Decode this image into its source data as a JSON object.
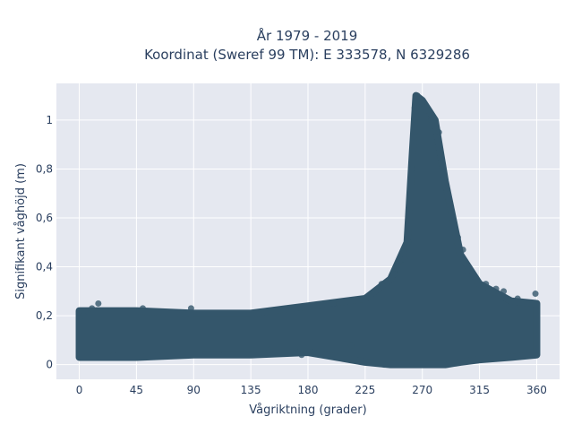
{
  "chart_data": {
    "type": "scatter",
    "title_lines": [
      "År 1979 - 2019",
      "Koordinat (Sweref 99 TM): E 333578, N 6329286"
    ],
    "xlabel": "Vågriktning (grader)",
    "ylabel": "Signifikant våghöjd (m)",
    "xlim": [
      -18,
      378
    ],
    "ylim": [
      -0.06,
      1.15
    ],
    "xticks": [
      {
        "value": 0,
        "label": "0"
      },
      {
        "value": 45,
        "label": "45"
      },
      {
        "value": 90,
        "label": "90"
      },
      {
        "value": 135,
        "label": "135"
      },
      {
        "value": 180,
        "label": "180"
      },
      {
        "value": 225,
        "label": "225"
      },
      {
        "value": 270,
        "label": "270"
      },
      {
        "value": 315,
        "label": "315"
      },
      {
        "value": 360,
        "label": "360"
      }
    ],
    "yticks": [
      {
        "value": 0,
        "label": "0"
      },
      {
        "value": 0.2,
        "label": "0,2"
      },
      {
        "value": 0.4,
        "label": "0,4"
      },
      {
        "value": 0.6,
        "label": "0,6"
      },
      {
        "value": 0.8,
        "label": "0,8"
      },
      {
        "value": 1.0,
        "label": "1"
      }
    ],
    "grid": true,
    "marker_color": "#34566b",
    "plot_bgcolor": "#e5e8f0",
    "envelope": [
      {
        "x": 0,
        "y_min": 0.03,
        "y_max": 0.22
      },
      {
        "x": 45,
        "y_min": 0.03,
        "y_max": 0.22
      },
      {
        "x": 90,
        "y_min": 0.04,
        "y_max": 0.21
      },
      {
        "x": 135,
        "y_min": 0.04,
        "y_max": 0.21
      },
      {
        "x": 180,
        "y_min": 0.05,
        "y_max": 0.24
      },
      {
        "x": 225,
        "y_min": 0.01,
        "y_max": 0.27
      },
      {
        "x": 245,
        "y_min": 0.0,
        "y_max": 0.35
      },
      {
        "x": 258,
        "y_min": 0.0,
        "y_max": 0.5
      },
      {
        "x": 262,
        "y_min": 0.0,
        "y_max": 0.85
      },
      {
        "x": 265,
        "y_min": 0.0,
        "y_max": 1.1
      },
      {
        "x": 270,
        "y_min": 0.0,
        "y_max": 1.08
      },
      {
        "x": 280,
        "y_min": 0.0,
        "y_max": 1.0
      },
      {
        "x": 288,
        "y_min": 0.0,
        "y_max": 0.75
      },
      {
        "x": 300,
        "y_min": 0.01,
        "y_max": 0.45
      },
      {
        "x": 315,
        "y_min": 0.02,
        "y_max": 0.33
      },
      {
        "x": 340,
        "y_min": 0.03,
        "y_max": 0.26
      },
      {
        "x": 360,
        "y_min": 0.04,
        "y_max": 0.25
      }
    ],
    "points": [
      {
        "x": 3,
        "y": 0.2
      },
      {
        "x": 10,
        "y": 0.23
      },
      {
        "x": 15,
        "y": 0.25
      },
      {
        "x": 27,
        "y": 0.04
      },
      {
        "x": 50,
        "y": 0.23
      },
      {
        "x": 88,
        "y": 0.23
      },
      {
        "x": 95,
        "y": 0.05
      },
      {
        "x": 110,
        "y": 0.04
      },
      {
        "x": 150,
        "y": 0.06
      },
      {
        "x": 175,
        "y": 0.04
      },
      {
        "x": 185,
        "y": 0.05
      },
      {
        "x": 200,
        "y": 0.25
      },
      {
        "x": 214,
        "y": 0.08
      },
      {
        "x": 238,
        "y": 0.33
      },
      {
        "x": 248,
        "y": 0.37
      },
      {
        "x": 256,
        "y": 0.43
      },
      {
        "x": 259,
        "y": 0.5
      },
      {
        "x": 262,
        "y": 0.8
      },
      {
        "x": 264,
        "y": 1.05
      },
      {
        "x": 266,
        "y": 1.1
      },
      {
        "x": 268,
        "y": 1.09
      },
      {
        "x": 270,
        "y": 1.07
      },
      {
        "x": 273,
        "y": 1.04
      },
      {
        "x": 277,
        "y": 1.0
      },
      {
        "x": 283,
        "y": 0.95
      },
      {
        "x": 285,
        "y": 0.78
      },
      {
        "x": 289,
        "y": 0.72
      },
      {
        "x": 298,
        "y": 0.52
      },
      {
        "x": 302,
        "y": 0.47
      },
      {
        "x": 305,
        "y": 0.38
      },
      {
        "x": 320,
        "y": 0.33
      },
      {
        "x": 328,
        "y": 0.31
      },
      {
        "x": 334,
        "y": 0.3
      },
      {
        "x": 345,
        "y": 0.27
      },
      {
        "x": 359,
        "y": 0.29
      },
      {
        "x": 240,
        "y": 0.0
      },
      {
        "x": 262,
        "y": 0.01
      },
      {
        "x": 290,
        "y": 0.0
      }
    ]
  }
}
